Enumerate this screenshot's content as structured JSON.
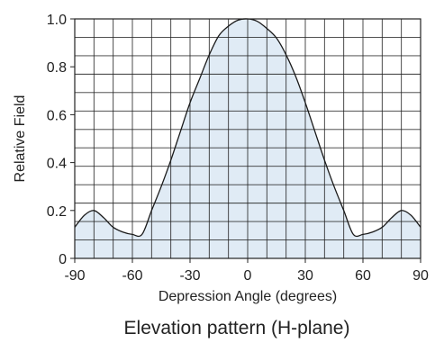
{
  "chart_data": {
    "type": "area",
    "title": "Elevation pattern (H-plane)",
    "xlabel": "Depression Angle (degrees)",
    "ylabel": "Relative Field",
    "xlim": [
      -90,
      90
    ],
    "ylim": [
      0,
      1.0
    ],
    "x_tick_labels": [
      "-90",
      "-60",
      "-30",
      "0",
      "30",
      "60",
      "90"
    ],
    "y_tick_labels": [
      "0",
      "0.2",
      "0.4",
      "0.6",
      "0.8",
      "1.0"
    ],
    "grid": true,
    "series": [
      {
        "x": [
          -90,
          -85,
          -80,
          -75,
          -70,
          -65,
          -60,
          -55,
          -50,
          -45,
          -40,
          -35,
          -30,
          -25,
          -20,
          -15,
          -10,
          -5,
          0,
          5,
          10,
          15,
          20,
          25,
          30,
          35,
          40,
          45,
          50,
          55,
          60,
          65,
          70,
          75,
          80,
          85,
          90
        ],
        "values": [
          0.13,
          0.18,
          0.2,
          0.17,
          0.13,
          0.11,
          0.1,
          0.1,
          0.2,
          0.3,
          0.41,
          0.53,
          0.65,
          0.75,
          0.85,
          0.93,
          0.97,
          0.995,
          1.0,
          0.99,
          0.96,
          0.92,
          0.85,
          0.76,
          0.65,
          0.53,
          0.41,
          0.3,
          0.2,
          0.1,
          0.1,
          0.11,
          0.13,
          0.17,
          0.2,
          0.18,
          0.13
        ]
      }
    ],
    "colors": {
      "fill": "#dbe8f3",
      "line": "#1a1a1a",
      "grid": "#222222",
      "text": "#222222"
    }
  }
}
